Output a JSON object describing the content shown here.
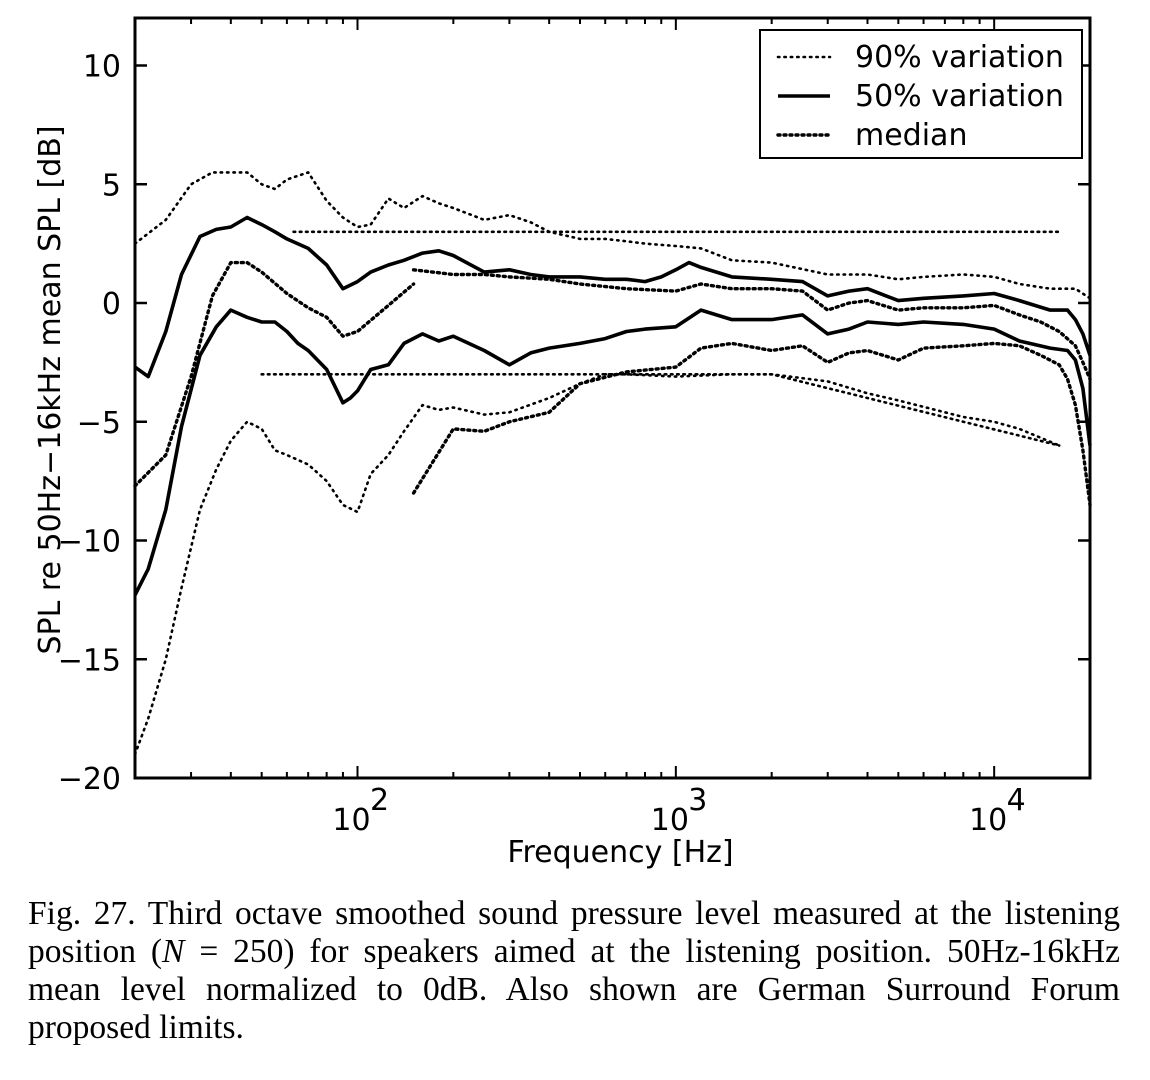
{
  "chart_data": {
    "type": "line",
    "x_scale": "log",
    "xlim": [
      20,
      20000
    ],
    "ylim": [
      -20,
      12
    ],
    "xlabel": "Frequency [Hz]",
    "ylabel": "SPL re 50Hz−16kHz mean SPL [dB]",
    "yticks": [
      10,
      5,
      0,
      -5,
      -10,
      -15,
      -20
    ],
    "ytick_labels": [
      "10",
      "5",
      "0",
      "−5",
      "−10",
      "−15",
      "−20"
    ],
    "xticks": [
      {
        "value": 100,
        "base": "10",
        "exp": "2"
      },
      {
        "value": 1000,
        "base": "10",
        "exp": "3"
      },
      {
        "value": 10000,
        "base": "10",
        "exp": "4"
      }
    ],
    "legend": [
      {
        "label": "90% variation",
        "style": "dotted"
      },
      {
        "label": "50% variation",
        "style": "solid"
      },
      {
        "label": "median",
        "style": "dense-dotted"
      }
    ],
    "series": [
      {
        "name": "90% variation upper",
        "style": "dotted",
        "x": [
          20,
          25,
          30,
          35,
          40,
          45,
          50,
          55,
          60,
          70,
          80,
          90,
          100,
          110,
          125,
          140,
          160,
          180,
          200,
          250,
          300,
          350,
          400,
          500,
          600,
          700,
          800,
          1000,
          1200,
          1500,
          2000,
          3000,
          4000,
          5000,
          6000,
          8000,
          10000,
          12000,
          15000,
          18000,
          20000
        ],
        "y": [
          2.5,
          3.5,
          5.0,
          5.5,
          5.5,
          5.5,
          5.0,
          4.8,
          5.2,
          5.5,
          4.3,
          3.6,
          3.2,
          3.3,
          4.4,
          4.0,
          4.5,
          4.2,
          4.0,
          3.5,
          3.7,
          3.4,
          3.0,
          2.7,
          2.7,
          2.6,
          2.5,
          2.4,
          2.3,
          1.8,
          1.7,
          1.2,
          1.2,
          1.0,
          1.1,
          1.2,
          1.1,
          0.8,
          0.6,
          0.6,
          0.2
        ]
      },
      {
        "name": "50% variation upper",
        "style": "solid",
        "x": [
          20,
          22,
          25,
          28,
          32,
          36,
          40,
          45,
          50,
          55,
          60,
          70,
          80,
          90,
          100,
          110,
          125,
          140,
          160,
          180,
          200,
          250,
          300,
          350,
          400,
          500,
          600,
          700,
          800,
          900,
          1000,
          1100,
          1200,
          1500,
          2000,
          2500,
          3000,
          3500,
          4000,
          5000,
          6000,
          8000,
          10000,
          12000,
          15000,
          17000,
          18000,
          19000,
          20000
        ],
        "y": [
          -2.7,
          -3.1,
          -1.2,
          1.2,
          2.8,
          3.1,
          3.2,
          3.6,
          3.3,
          3.0,
          2.7,
          2.3,
          1.6,
          0.6,
          0.9,
          1.3,
          1.6,
          1.8,
          2.1,
          2.2,
          2.0,
          1.3,
          1.4,
          1.2,
          1.1,
          1.1,
          1.0,
          1.0,
          0.9,
          1.1,
          1.4,
          1.7,
          1.5,
          1.1,
          1.0,
          0.9,
          0.3,
          0.5,
          0.6,
          0.1,
          0.2,
          0.3,
          0.4,
          0.1,
          -0.3,
          -0.3,
          -0.7,
          -1.3,
          -2.2
        ]
      },
      {
        "name": "median",
        "style": "dense-dotted",
        "x": [
          150,
          200,
          250,
          300,
          400,
          500,
          700,
          1000,
          1200,
          1500,
          2000,
          2500,
          3000,
          3500,
          4000,
          5000,
          6000,
          8000,
          10000,
          12000,
          14000,
          16000,
          18000,
          19000,
          20000
        ],
        "y": [
          1.4,
          1.2,
          1.2,
          1.1,
          1.0,
          0.8,
          0.6,
          0.5,
          0.8,
          0.6,
          0.6,
          0.5,
          -0.3,
          0.0,
          0.1,
          -0.3,
          -0.2,
          -0.2,
          -0.1,
          -0.5,
          -0.8,
          -1.2,
          -1.8,
          -2.5,
          -3.2
        ]
      },
      {
        "name": "50% variation lower",
        "style": "solid",
        "x": [
          20,
          22,
          25,
          28,
          32,
          36,
          40,
          45,
          50,
          55,
          60,
          65,
          70,
          80,
          90,
          95,
          100,
          110,
          125,
          140,
          160,
          180,
          200,
          250,
          300,
          350,
          400,
          500,
          600,
          700,
          800,
          1000,
          1200,
          1500,
          2000,
          2500,
          3000,
          3500,
          4000,
          5000,
          6000,
          8000,
          10000,
          12000,
          15000,
          17000,
          18000,
          19000,
          20000
        ],
        "y": [
          -12.3,
          -11.2,
          -8.7,
          -5.2,
          -2.2,
          -1.0,
          -0.3,
          -0.6,
          -0.8,
          -0.8,
          -1.2,
          -1.7,
          -2.0,
          -2.8,
          -4.2,
          -4.0,
          -3.7,
          -2.8,
          -2.6,
          -1.7,
          -1.3,
          -1.6,
          -1.4,
          -2.0,
          -2.6,
          -2.1,
          -1.9,
          -1.7,
          -1.5,
          -1.2,
          -1.1,
          -1.0,
          -0.3,
          -0.7,
          -0.7,
          -0.5,
          -1.3,
          -1.1,
          -0.8,
          -0.9,
          -0.8,
          -0.9,
          -1.1,
          -1.6,
          -1.9,
          -2.0,
          -2.4,
          -3.6,
          -6.0
        ]
      },
      {
        "name": "90% variation lower",
        "style": "dotted",
        "x": [
          20,
          22,
          25,
          28,
          32,
          36,
          40,
          45,
          50,
          55,
          60,
          70,
          80,
          90,
          100,
          110,
          125,
          140,
          160,
          180,
          200,
          250,
          300,
          400,
          500,
          600,
          700,
          1000,
          1500,
          2000,
          3000,
          4000,
          5000,
          8000,
          10000,
          12000,
          16000
        ],
        "y": [
          -19.0,
          -17.5,
          -15.0,
          -12.0,
          -8.7,
          -7.0,
          -5.8,
          -5.0,
          -5.3,
          -6.2,
          -6.4,
          -6.8,
          -7.5,
          -8.5,
          -8.8,
          -7.2,
          -6.4,
          -5.4,
          -4.3,
          -4.5,
          -4.4,
          -4.7,
          -4.6,
          -4.0,
          -3.4,
          -3.0,
          -3.0,
          -3.1,
          -3.0,
          -3.0,
          -3.3,
          -3.8,
          -4.1,
          -4.8,
          -5.0,
          -5.3,
          -6.0
        ]
      },
      {
        "name": "median lower",
        "style": "dense-dotted",
        "x": [
          150,
          200,
          250,
          300,
          400,
          500,
          700,
          1000,
          1200,
          1500,
          2000,
          2500,
          3000,
          3500,
          4000,
          5000,
          6000,
          8000,
          10000,
          12000,
          14000,
          16000,
          17000,
          18000,
          19000,
          20000
        ],
        "y": [
          -8.0,
          -5.3,
          -5.4,
          -5.0,
          -4.6,
          -3.4,
          -2.9,
          -2.7,
          -1.9,
          -1.7,
          -2.0,
          -1.8,
          -2.5,
          -2.1,
          -2.0,
          -2.4,
          -1.9,
          -1.8,
          -1.7,
          -1.8,
          -2.2,
          -2.6,
          -3.2,
          -4.3,
          -6.2,
          -8.5
        ]
      },
      {
        "name": "median upper",
        "style": "dense-dotted",
        "x": [
          20,
          25,
          30,
          35,
          40,
          45,
          50,
          60,
          70,
          80,
          90,
          100,
          125,
          150
        ],
        "y": [
          -7.7,
          -6.4,
          -3.1,
          0.3,
          1.7,
          1.7,
          1.3,
          0.4,
          -0.2,
          -0.6,
          -1.4,
          -1.2,
          -0.1,
          0.8
        ]
      },
      {
        "name": "limit upper",
        "style": "limit",
        "x": [
          63,
          16000
        ],
        "y": [
          3,
          3
        ]
      },
      {
        "name": "limit lower",
        "style": "limit",
        "x": [
          50,
          2000,
          16000
        ],
        "y": [
          -3,
          -3,
          -6
        ]
      }
    ]
  },
  "caption": {
    "fig_label": "Fig. 27.",
    "text_before_n": "Third octave smoothed sound pressure level measured at the listening position (",
    "n_var": "N",
    "text_after_n": " = 250) for speakers aimed at the listening position. 50Hz-16kHz mean level normalized to 0dB. Also shown are German Surround Forum proposed limits."
  }
}
